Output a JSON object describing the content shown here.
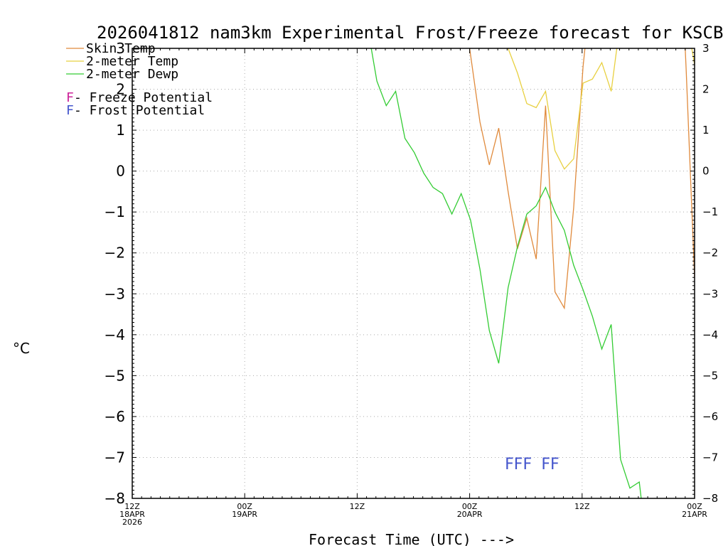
{
  "chart_data": {
    "type": "line",
    "title": "2026041812 nam3km Experimental Frost/Freeze forecast for KSCB",
    "xlabel": "Forecast Time (UTC) --->",
    "ylabel": "°C",
    "ylim": [
      -8,
      3
    ],
    "yticks": [
      3,
      2,
      1,
      0,
      -1,
      -2,
      -3,
      -4,
      -5,
      -6,
      -7,
      -8
    ],
    "xlim": [
      0,
      60
    ],
    "x_unit": "hours since 12Z 18APR 2026",
    "xticks": [
      {
        "x": 0,
        "lines": [
          "12Z",
          "18APR",
          "2026"
        ]
      },
      {
        "x": 12,
        "lines": [
          "00Z",
          "19APR"
        ]
      },
      {
        "x": 24,
        "lines": [
          "12Z"
        ]
      },
      {
        "x": 36,
        "lines": [
          "00Z",
          "20APR"
        ]
      },
      {
        "x": 48,
        "lines": [
          "12Z"
        ]
      },
      {
        "x": 60,
        "lines": [
          "00Z",
          "21APR"
        ]
      }
    ],
    "grid": true,
    "legend_position": "top-left",
    "series": [
      {
        "name": "Skin Temp",
        "color": "#e08a3c",
        "points": [
          [
            36,
            3.0
          ],
          [
            37.1,
            1.2
          ],
          [
            38.1,
            0.15
          ],
          [
            39.1,
            1.05
          ],
          [
            40.1,
            -0.5
          ],
          [
            41.1,
            -1.9
          ],
          [
            42.1,
            -1.15
          ],
          [
            43.1,
            -2.15
          ],
          [
            44.1,
            1.6
          ],
          [
            45.1,
            -2.95
          ],
          [
            46.1,
            -3.35
          ],
          [
            47.1,
            -0.9
          ],
          [
            48.1,
            2.55
          ],
          [
            48.3,
            3.0
          ],
          [
            59.0,
            3.0
          ],
          [
            59.1,
            2.5
          ],
          [
            60,
            -2.6
          ]
        ]
      },
      {
        "name": "2-meter Temp",
        "color": "#e8d040",
        "points": [
          [
            40.1,
            3.0
          ],
          [
            41.1,
            2.4
          ],
          [
            42.1,
            1.65
          ],
          [
            43.1,
            1.55
          ],
          [
            44.1,
            1.95
          ],
          [
            45.1,
            0.5
          ],
          [
            46.1,
            0.05
          ],
          [
            47.1,
            0.3
          ],
          [
            48.1,
            2.15
          ],
          [
            49.1,
            2.25
          ],
          [
            50.1,
            2.65
          ],
          [
            51.1,
            1.95
          ],
          [
            51.7,
            3.0
          ],
          [
            59.7,
            3.0
          ],
          [
            60,
            2.6
          ]
        ]
      },
      {
        "name": "2-meter Dewp",
        "color": "#33cc33",
        "points": [
          [
            25.5,
            3.0
          ],
          [
            26.1,
            2.2
          ],
          [
            27.1,
            1.6
          ],
          [
            28.1,
            1.95
          ],
          [
            29.1,
            0.8
          ],
          [
            30.1,
            0.45
          ],
          [
            31.1,
            -0.05
          ],
          [
            32.1,
            -0.4
          ],
          [
            33.1,
            -0.55
          ],
          [
            34.1,
            -1.05
          ],
          [
            35.1,
            -0.55
          ],
          [
            36.1,
            -1.2
          ],
          [
            37.1,
            -2.4
          ],
          [
            38.1,
            -3.9
          ],
          [
            39.1,
            -4.7
          ],
          [
            40.1,
            -2.85
          ],
          [
            41.1,
            -1.85
          ],
          [
            42.1,
            -1.05
          ],
          [
            43.1,
            -0.85
          ],
          [
            44.1,
            -0.4
          ],
          [
            45.1,
            -1.0
          ],
          [
            46.1,
            -1.45
          ],
          [
            47.1,
            -2.3
          ],
          [
            48.1,
            -2.9
          ],
          [
            49.1,
            -3.55
          ],
          [
            50.1,
            -4.35
          ],
          [
            51.1,
            -3.75
          ],
          [
            52.1,
            -7.05
          ],
          [
            53.1,
            -7.75
          ],
          [
            54.1,
            -7.6
          ],
          [
            54.3,
            -8.0
          ]
        ]
      }
    ],
    "potential_legend": [
      {
        "marker": "F",
        "label": " - Freeze Potential",
        "color": "#cc2299"
      },
      {
        "marker": "F",
        "label": " - Frost Potential",
        "color": "#4455cc"
      }
    ],
    "markers": [
      {
        "text": "FFF",
        "x": 41.2,
        "y": -7.15,
        "color": "#4455cc"
      },
      {
        "text": "FF",
        "x": 44.6,
        "y": -7.15,
        "color": "#4455cc"
      }
    ]
  }
}
